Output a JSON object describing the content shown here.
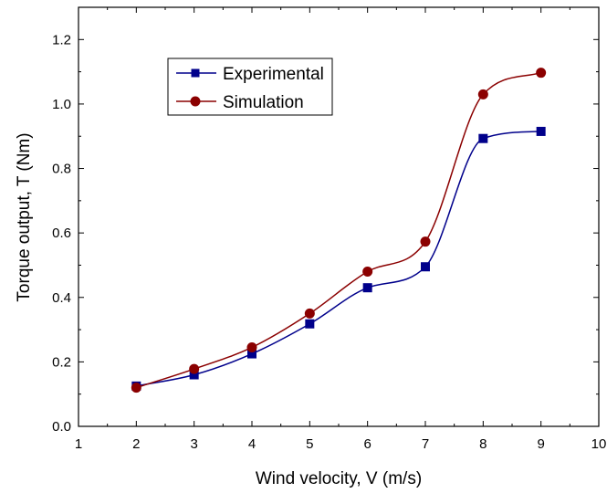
{
  "chart_data": {
    "type": "line",
    "xlabel": "Wind velocity, V (m/s)",
    "ylabel": "Torque output, T (Nm)",
    "xlim": [
      1,
      10
    ],
    "ylim": [
      0,
      1.3
    ],
    "x_ticks": [
      "1",
      "2",
      "3",
      "4",
      "5",
      "6",
      "7",
      "8",
      "9",
      "10"
    ],
    "y_ticks": [
      "0.0",
      "0.2",
      "0.4",
      "0.6",
      "0.8",
      "1.0",
      "1.2"
    ],
    "grid": false,
    "legend_position": "top-left",
    "x": [
      2,
      3,
      4,
      5,
      6,
      7,
      8,
      9
    ],
    "series": [
      {
        "name": "Experimental",
        "marker": "square",
        "color": "#00008B",
        "values": [
          0.125,
          0.16,
          0.225,
          0.318,
          0.43,
          0.495,
          0.893,
          0.915
        ]
      },
      {
        "name": "Simulation",
        "marker": "circle",
        "color": "#8B0000",
        "values": [
          0.12,
          0.178,
          0.245,
          0.35,
          0.48,
          0.573,
          1.03,
          1.097
        ]
      }
    ]
  }
}
